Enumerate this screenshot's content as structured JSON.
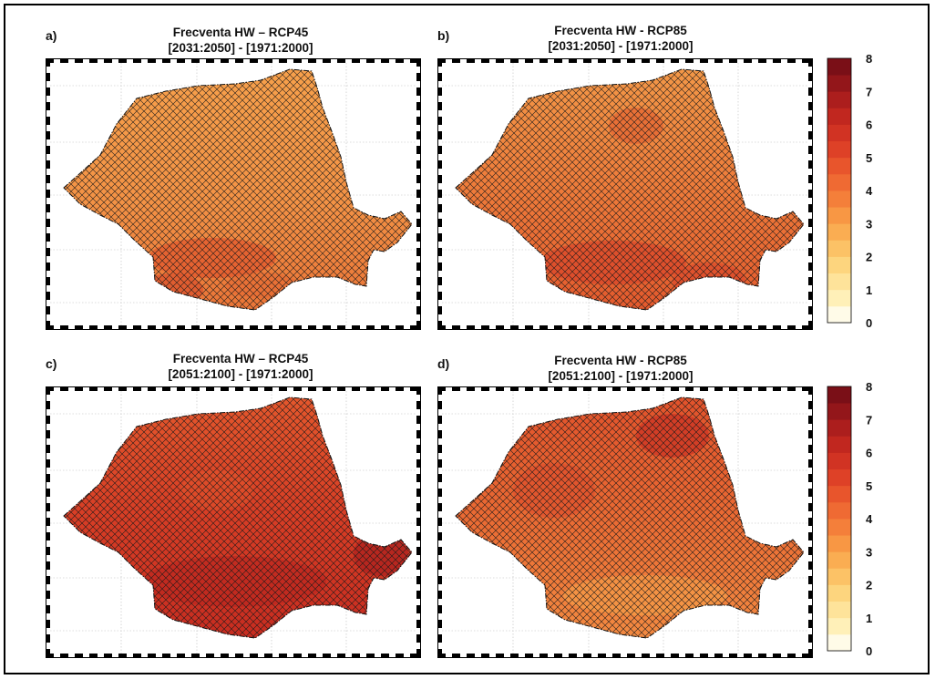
{
  "figure": {
    "panels": [
      {
        "label": "a)",
        "title": "Frecventa HW – RCP45",
        "subtitle": "[2031:2050] - [1971:2000]",
        "scenario": "RCP45",
        "period": "2031-2050",
        "mean_level": 3.6
      },
      {
        "label": "b)",
        "title": "Frecventa HW - RCP85",
        "subtitle": "[2031:2050] - [1971:2000]",
        "scenario": "RCP85",
        "period": "2031-2050",
        "mean_level": 4.4
      },
      {
        "label": "c)",
        "title": "Frecventa HW – RCP45",
        "subtitle": "[2051:2100] - [1971:2000]",
        "scenario": "RCP45",
        "period": "2051-2100",
        "mean_level": 5.6
      },
      {
        "label": "d)",
        "title": "Frecventa HW - RCP85",
        "subtitle": "[2051:2100] - [1971:2000]",
        "scenario": "RCP85",
        "period": "2051-2100",
        "mean_level": 4.6
      }
    ],
    "colorbar": {
      "ticks": [
        "0",
        "1",
        "2",
        "3",
        "4",
        "5",
        "6",
        "7",
        "8"
      ],
      "colors": [
        "#fffbe8",
        "#fff0b8",
        "#fee39a",
        "#fdd57e",
        "#fcc266",
        "#faad52",
        "#f89744",
        "#f47f3a",
        "#ef6a33",
        "#e8552c",
        "#de4127",
        "#d13323",
        "#c1271f",
        "#ac1e1d",
        "#93161a",
        "#7a0f17"
      ]
    }
  }
}
